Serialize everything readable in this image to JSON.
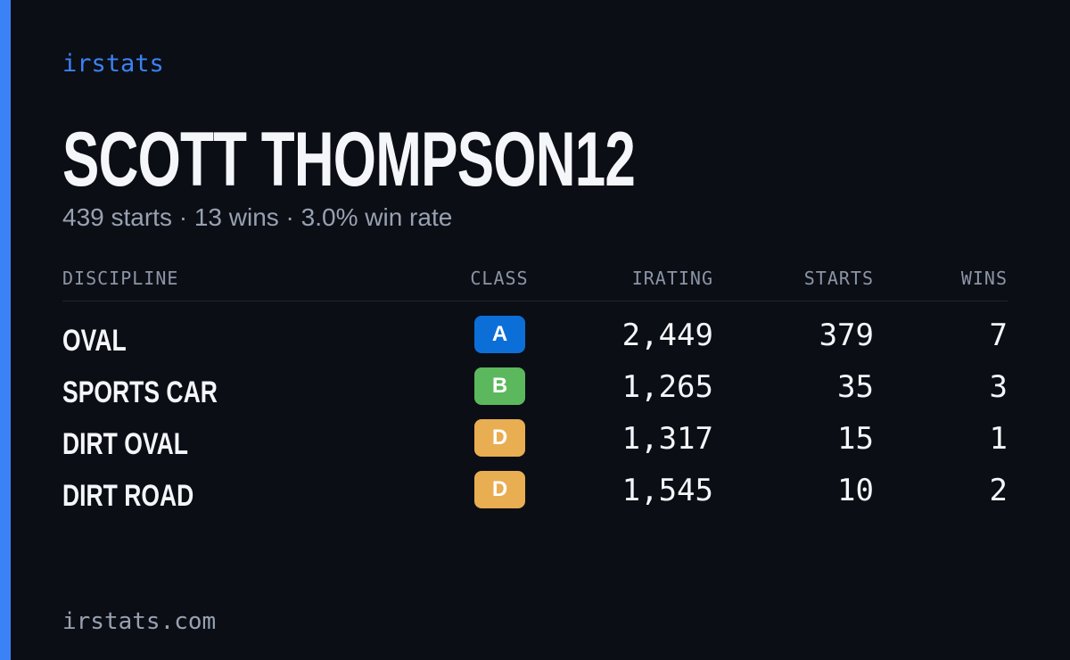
{
  "brand": "irstats",
  "name": "SCOTT THOMPSON12",
  "summary": "439 starts · 13 wins · 3.0% win rate",
  "table": {
    "headers": [
      "DISCIPLINE",
      "CLASS",
      "IRATING",
      "STARTS",
      "WINS"
    ],
    "rows": [
      {
        "discipline": "OVAL",
        "class": "A",
        "color": "#0c6fd8",
        "irating": "2,449",
        "starts": "379",
        "wins": "7"
      },
      {
        "discipline": "SPORTS CAR",
        "class": "B",
        "color": "#5cb85c",
        "irating": "1,265",
        "starts": "35",
        "wins": "3"
      },
      {
        "discipline": "DIRT OVAL",
        "class": "D",
        "color": "#e9ad52",
        "irating": "1,317",
        "starts": "15",
        "wins": "1"
      },
      {
        "discipline": "DIRT ROAD",
        "class": "D",
        "color": "#e9ad52",
        "irating": "1,545",
        "starts": "10",
        "wins": "2"
      }
    ]
  },
  "footer": "irstats.com"
}
